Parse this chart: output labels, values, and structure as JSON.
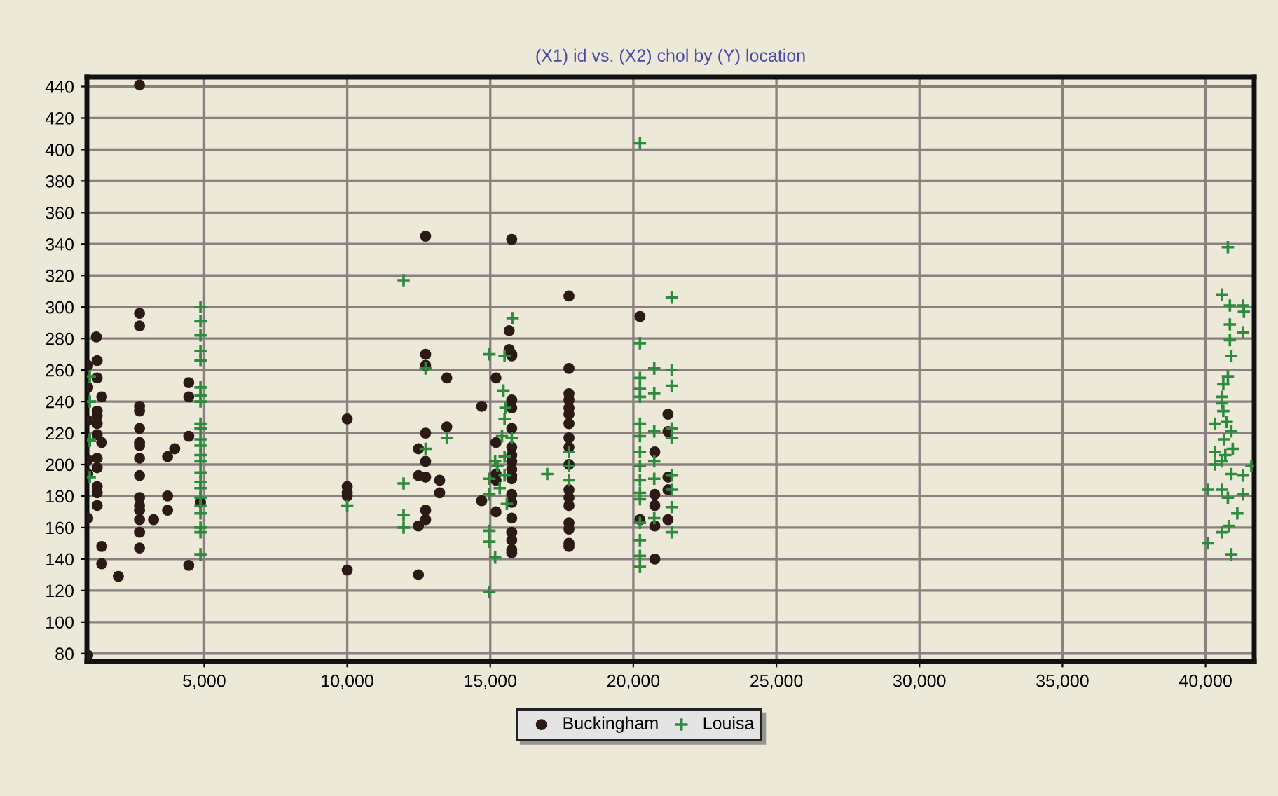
{
  "chart_data": {
    "type": "scatter",
    "title": "(X1) id vs. (X2) chol by (Y) location",
    "xlim": [
      900,
      41700
    ],
    "ylim": [
      75,
      446
    ],
    "xticks": [
      {
        "value": 5000,
        "label": "5,000"
      },
      {
        "value": 10000,
        "label": "10,000"
      },
      {
        "value": 15000,
        "label": "15,000"
      },
      {
        "value": 20000,
        "label": "20,000"
      },
      {
        "value": 25000,
        "label": "25,000"
      },
      {
        "value": 30000,
        "label": "30,000"
      },
      {
        "value": 35000,
        "label": "35,000"
      },
      {
        "value": 40000,
        "label": "40,000"
      }
    ],
    "yticks": [
      80,
      100,
      120,
      140,
      160,
      180,
      200,
      220,
      240,
      260,
      280,
      300,
      320,
      340,
      360,
      380,
      400,
      420,
      440
    ],
    "grid": true,
    "legend": "bottom",
    "series": [
      {
        "name": "Buckingham",
        "color": "#2b1a16",
        "marker": "circle",
        "x": [
          930,
          930,
          930,
          930,
          930,
          930,
          930,
          1230,
          1260,
          1260,
          1260,
          1260,
          1260,
          1260,
          1260,
          1260,
          1260,
          1260,
          1260,
          1420,
          1420,
          1420,
          1420,
          2000,
          2740,
          2740,
          2740,
          2740,
          2740,
          2740,
          2740,
          2740,
          2740,
          2740,
          2740,
          2740,
          2740,
          2740,
          2740,
          2740,
          3230,
          3720,
          3720,
          3720,
          3970,
          4460,
          4460,
          4460,
          4460,
          4870,
          10000,
          10000,
          10000,
          10000,
          10000,
          12490,
          12490,
          12490,
          12490,
          12740,
          12740,
          12740,
          12740,
          12740,
          12740,
          12740,
          12740,
          13230,
          13230,
          13480,
          13480,
          14700,
          14700,
          15200,
          15200,
          15200,
          15200,
          15200,
          15660,
          15660,
          15750,
          15750,
          15750,
          15750,
          15750,
          15750,
          15750,
          15750,
          15750,
          15750,
          15750,
          15750,
          15750,
          15750,
          15750,
          15750,
          15750,
          15750,
          15750,
          17750,
          17750,
          17750,
          17750,
          17750,
          17750,
          17750,
          17750,
          17750,
          17750,
          17750,
          17750,
          17750,
          17750,
          17750,
          17750,
          17750,
          20230,
          20230,
          20750,
          20750,
          20750,
          20750,
          20750,
          21210,
          21210,
          21210,
          21210,
          21210
        ],
        "values": [
          263,
          249,
          228,
          203,
          194,
          166,
          79,
          281,
          266,
          255,
          234,
          231,
          226,
          219,
          204,
          198,
          186,
          182,
          174,
          243,
          214,
          148,
          137,
          129,
          441,
          296,
          288,
          237,
          234,
          223,
          214,
          212,
          204,
          193,
          179,
          174,
          171,
          165,
          157,
          147,
          165,
          205,
          180,
          171,
          210,
          252,
          243,
          218,
          136,
          176,
          229,
          186,
          182,
          180,
          133,
          130,
          161,
          193,
          210,
          345,
          270,
          263,
          220,
          202,
          192,
          171,
          165,
          190,
          182,
          255,
          224,
          237,
          177,
          255,
          214,
          194,
          190,
          170,
          285,
          273,
          343,
          270,
          269,
          241,
          236,
          223,
          211,
          206,
          202,
          197,
          193,
          191,
          181,
          176,
          166,
          157,
          152,
          146,
          144,
          307,
          261,
          245,
          241,
          236,
          232,
          226,
          217,
          211,
          200,
          184,
          179,
          174,
          163,
          159,
          150,
          148,
          294,
          165,
          208,
          181,
          174,
          161,
          140,
          232,
          221,
          192,
          184,
          165
        ]
      },
      {
        "name": "Louisa",
        "color": "#2e8b3e",
        "marker": "cross",
        "x": [
          1000,
          1000,
          1000,
          1000,
          1000,
          4870,
          4870,
          4870,
          4870,
          4870,
          4870,
          4870,
          4870,
          4870,
          4870,
          4870,
          4870,
          4870,
          4870,
          4870,
          4870,
          4870,
          4870,
          4870,
          4870,
          4870,
          4870,
          4870,
          10000,
          11970,
          11970,
          11970,
          11970,
          12740,
          12740,
          13480,
          14970,
          14970,
          14970,
          14970,
          14970,
          14970,
          15170,
          15170,
          15500,
          15460,
          15530,
          15500,
          15410,
          15500,
          15500,
          15580,
          15250,
          15330,
          15750,
          15780,
          16990,
          17750,
          17750,
          17750,
          20230,
          20230,
          20230,
          20230,
          20230,
          20230,
          20230,
          20230,
          20230,
          20230,
          20230,
          20230,
          20230,
          20230,
          20230,
          20230,
          20730,
          20730,
          20730,
          20730,
          20730,
          20730,
          21340,
          21340,
          21340,
          21340,
          21340,
          21340,
          21340,
          21340,
          21340,
          40780,
          40570,
          40850,
          41310,
          41340,
          40850,
          41310,
          40850,
          40900,
          40780,
          40620,
          40570,
          40570,
          40620,
          40330,
          40740,
          40900,
          40650,
          40950,
          40330,
          40690,
          40330,
          40570,
          41600,
          40900,
          41310,
          40080,
          40570,
          40780,
          41310,
          41110,
          40820,
          40570,
          40080,
          40900
        ],
        "values": [
          256,
          240,
          216,
          215,
          192,
          300,
          291,
          282,
          272,
          266,
          249,
          244,
          240,
          226,
          223,
          216,
          212,
          206,
          202,
          195,
          189,
          185,
          179,
          174,
          169,
          160,
          157,
          143,
          174,
          317,
          188,
          168,
          160,
          261,
          210,
          217,
          270,
          119,
          158,
          151,
          181,
          191,
          202,
          141,
          269,
          247,
          236,
          229,
          218,
          205,
          193,
          175,
          199,
          185,
          217,
          293,
          194,
          208,
          199,
          190,
          404,
          277,
          255,
          248,
          243,
          226,
          218,
          208,
          199,
          190,
          182,
          178,
          163,
          152,
          142,
          135,
          261,
          245,
          221,
          202,
          191,
          166,
          306,
          260,
          250,
          223,
          217,
          193,
          184,
          173,
          157,
          338,
          308,
          301,
          301,
          297,
          289,
          284,
          279,
          269,
          256,
          251,
          243,
          239,
          234,
          226,
          227,
          221,
          216,
          210,
          208,
          206,
          200,
          202,
          199,
          194,
          193,
          184,
          184,
          179,
          181,
          169,
          161,
          157,
          150,
          143
        ]
      }
    ]
  }
}
